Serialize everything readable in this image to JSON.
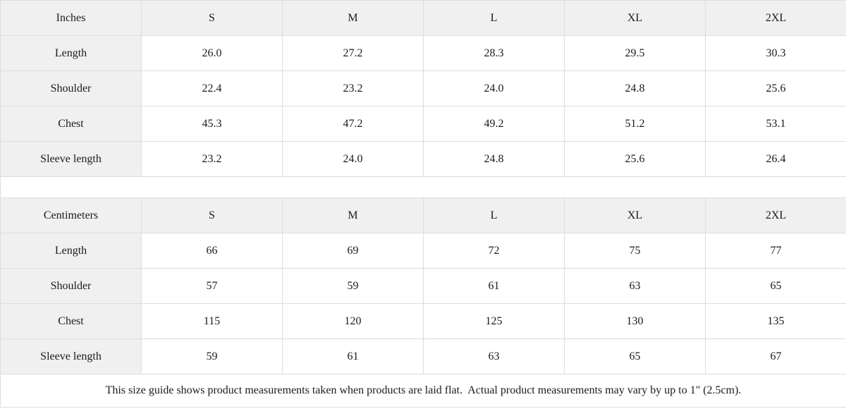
{
  "colors": {
    "header_bg": "#f0f0f0",
    "cell_bg": "#ffffff",
    "border": "#dddddd",
    "text": "#1b1b1b"
  },
  "size_guide": {
    "sections": [
      {
        "unit_label": "Inches",
        "size_headers": [
          "S",
          "M",
          "L",
          "XL",
          "2XL"
        ],
        "rows": [
          {
            "label": "Length",
            "values": [
              "26.0",
              "27.2",
              "28.3",
              "29.5",
              "30.3"
            ]
          },
          {
            "label": "Shoulder",
            "values": [
              "22.4",
              "23.2",
              "24.0",
              "24.8",
              "25.6"
            ]
          },
          {
            "label": "Chest",
            "values": [
              "45.3",
              "47.2",
              "49.2",
              "51.2",
              "53.1"
            ]
          },
          {
            "label": "Sleeve length",
            "values": [
              "23.2",
              "24.0",
              "24.8",
              "25.6",
              "26.4"
            ]
          }
        ]
      },
      {
        "unit_label": "Centimeters",
        "size_headers": [
          "S",
          "M",
          "L",
          "XL",
          "2XL"
        ],
        "rows": [
          {
            "label": "Length",
            "values": [
              "66",
              "69",
              "72",
              "75",
              "77"
            ]
          },
          {
            "label": "Shoulder",
            "values": [
              "57",
              "59",
              "61",
              "63",
              "65"
            ]
          },
          {
            "label": "Chest",
            "values": [
              "115",
              "120",
              "125",
              "130",
              "135"
            ]
          },
          {
            "label": "Sleeve length",
            "values": [
              "59",
              "61",
              "63",
              "65",
              "67"
            ]
          }
        ]
      }
    ],
    "footer_note": "This size guide shows product measurements taken when products are laid flat.  Actual product measurements may vary by up to 1\" (2.5cm)."
  }
}
